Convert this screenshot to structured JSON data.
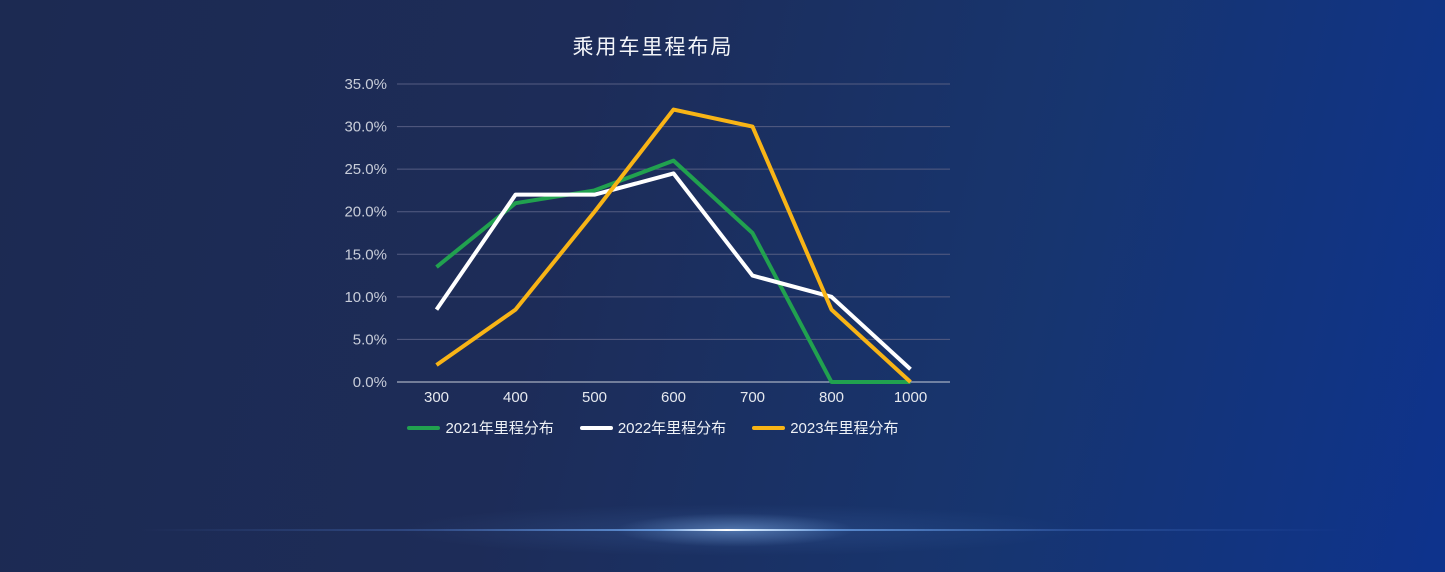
{
  "page": {
    "title": "乘用车里程布局"
  },
  "colors": {
    "background_start": "#1c2a52",
    "background_end": "#0e338d",
    "grid_line": "#555d82",
    "axis_line": "#c9ced9",
    "y_tick_label": "#c8cdd9",
    "x_tick_label": "#e6e9ef",
    "title_text": "#f3f5f9",
    "glow_accent": "#d8ecff",
    "series_2021": "#21a14f",
    "series_2022": "#ffffff",
    "series_2023": "#f8b416"
  },
  "chart_data": {
    "type": "line",
    "title": "乘用车里程布局",
    "xlabel": "",
    "ylabel": "",
    "categories": [
      "300",
      "400",
      "500",
      "600",
      "700",
      "800",
      "1000"
    ],
    "series": [
      {
        "name": "2021年里程分布",
        "color": "#21a14f",
        "values": [
          13.5,
          21,
          22.5,
          26,
          17.5,
          0,
          0
        ]
      },
      {
        "name": "2022年里程分布",
        "color": "#ffffff",
        "values": [
          8.5,
          22,
          22,
          24.5,
          12.5,
          10,
          1.5
        ]
      },
      {
        "name": "2023年里程分布",
        "color": "#f8b416",
        "values": [
          2,
          8.5,
          20,
          32,
          30,
          8.5,
          0
        ]
      }
    ],
    "ylim": [
      0,
      35
    ],
    "y_tick_step": 5,
    "y_tick_labels": [
      "0.0%",
      "5.0%",
      "10.0%",
      "15.0%",
      "20.0%",
      "25.0%",
      "30.0%",
      "35.0%"
    ],
    "grid": true,
    "legend_position": "bottom"
  }
}
